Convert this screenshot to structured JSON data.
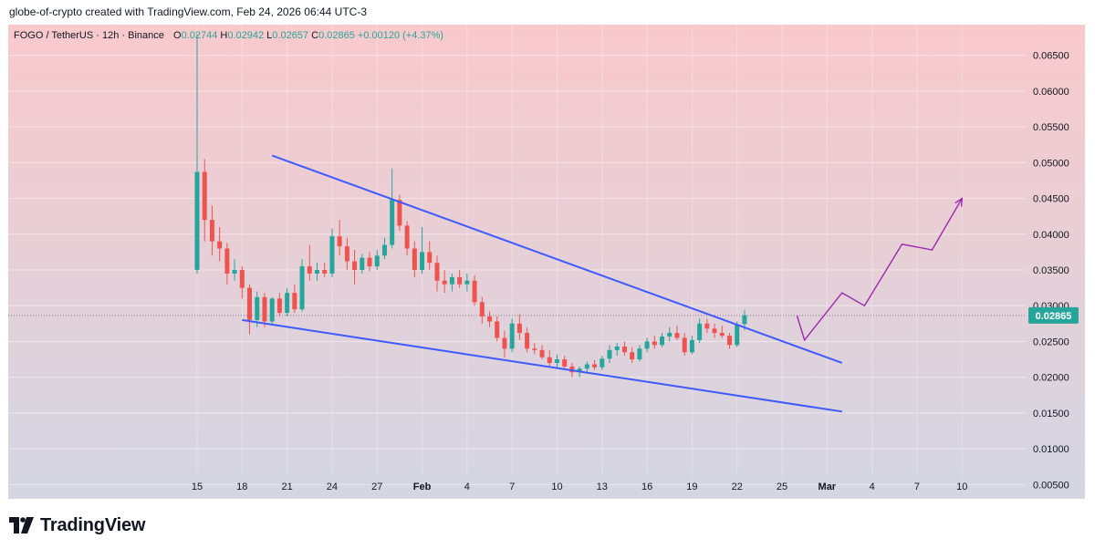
{
  "header": {
    "caption": "globe-of-crypto created with TradingView.com, Feb 24, 2026 06:44 UTC-3"
  },
  "legend": {
    "symbol": "FOGO / TetherUS · 12h · Binance",
    "o_label": "O",
    "o_value": "0.02744",
    "h_label": "H",
    "h_value": "0.02942",
    "l_label": "L",
    "l_value": "0.02657",
    "c_label": "C",
    "c_value": "0.02865",
    "change": "+0.00120 (+4.37%)"
  },
  "price_tag": "0.02865",
  "brand": {
    "name": "TradingView"
  },
  "colors": {
    "up": "#26a69a",
    "down": "#ef5350",
    "trendline": "#3d5afe",
    "projection": "#9c27b0",
    "bg_top": "#f9c9cc",
    "bg_bottom": "#d3d6e2",
    "tag": "#26a69a"
  },
  "chart_data": {
    "type": "candlestick",
    "interval": "12h",
    "x_axis": {
      "type": "date",
      "start": "2026-01-15",
      "end": "2026-03-11",
      "ticks": [
        "15",
        "18",
        "21",
        "24",
        "27",
        "Feb",
        "4",
        "7",
        "10",
        "13",
        "16",
        "19",
        "22",
        "25",
        "Mar",
        "4",
        "7",
        "10"
      ]
    },
    "y_axis": {
      "range": [
        0.003,
        0.0693
      ],
      "ticks": [
        "0.06500",
        "0.06000",
        "0.05500",
        "0.05000",
        "0.04500",
        "0.04000",
        "0.03500",
        "0.03000",
        "0.02500",
        "0.02000",
        "0.01500",
        "0.01000",
        "0.00500"
      ]
    },
    "last_price": 0.02865,
    "candles": [
      [
        0.035,
        0.068,
        0.0345,
        0.0487
      ],
      [
        0.0487,
        0.0505,
        0.039,
        0.042
      ],
      [
        0.042,
        0.044,
        0.037,
        0.039
      ],
      [
        0.039,
        0.041,
        0.0362,
        0.038
      ],
      [
        0.038,
        0.0388,
        0.033,
        0.0345
      ],
      [
        0.0345,
        0.0365,
        0.0335,
        0.035
      ],
      [
        0.035,
        0.0355,
        0.031,
        0.0325
      ],
      [
        0.0325,
        0.033,
        0.026,
        0.028
      ],
      [
        0.028,
        0.032,
        0.027,
        0.0312
      ],
      [
        0.0312,
        0.0318,
        0.027,
        0.0278
      ],
      [
        0.0278,
        0.0312,
        0.0275,
        0.031
      ],
      [
        0.031,
        0.0318,
        0.0285,
        0.029
      ],
      [
        0.029,
        0.0325,
        0.0285,
        0.0318
      ],
      [
        0.0318,
        0.033,
        0.029,
        0.0295
      ],
      [
        0.0295,
        0.0365,
        0.0292,
        0.0355
      ],
      [
        0.0355,
        0.0385,
        0.0335,
        0.0345
      ],
      [
        0.0345,
        0.036,
        0.0335,
        0.035
      ],
      [
        0.035,
        0.036,
        0.034,
        0.0345
      ],
      [
        0.0345,
        0.0408,
        0.034,
        0.0397
      ],
      [
        0.0397,
        0.042,
        0.037,
        0.0383
      ],
      [
        0.0383,
        0.0395,
        0.035,
        0.0362
      ],
      [
        0.0362,
        0.0378,
        0.033,
        0.035
      ],
      [
        0.035,
        0.0372,
        0.0345,
        0.0367
      ],
      [
        0.0367,
        0.0375,
        0.0348,
        0.0355
      ],
      [
        0.0355,
        0.0378,
        0.035,
        0.037
      ],
      [
        0.037,
        0.0395,
        0.0365,
        0.0385
      ],
      [
        0.0385,
        0.0492,
        0.038,
        0.0448
      ],
      [
        0.0448,
        0.0455,
        0.0405,
        0.0412
      ],
      [
        0.0412,
        0.0418,
        0.037,
        0.038
      ],
      [
        0.038,
        0.039,
        0.034,
        0.035
      ],
      [
        0.035,
        0.041,
        0.0345,
        0.0375
      ],
      [
        0.0375,
        0.039,
        0.035,
        0.036
      ],
      [
        0.036,
        0.037,
        0.032,
        0.0335
      ],
      [
        0.0335,
        0.035,
        0.0318,
        0.033
      ],
      [
        0.033,
        0.0345,
        0.032,
        0.034
      ],
      [
        0.034,
        0.035,
        0.0325,
        0.033
      ],
      [
        0.033,
        0.0345,
        0.032,
        0.0335
      ],
      [
        0.0335,
        0.0342,
        0.03,
        0.0305
      ],
      [
        0.0305,
        0.0312,
        0.0275,
        0.0285
      ],
      [
        0.0285,
        0.0292,
        0.027,
        0.0278
      ],
      [
        0.0278,
        0.0285,
        0.025,
        0.0255
      ],
      [
        0.0255,
        0.0265,
        0.0228,
        0.024
      ],
      [
        0.024,
        0.0282,
        0.0235,
        0.0275
      ],
      [
        0.0275,
        0.0288,
        0.0252,
        0.0262
      ],
      [
        0.0262,
        0.027,
        0.0235,
        0.024
      ],
      [
        0.024,
        0.0248,
        0.0232,
        0.0238
      ],
      [
        0.0238,
        0.0245,
        0.0225,
        0.0228
      ],
      [
        0.0228,
        0.0238,
        0.0215,
        0.022
      ],
      [
        0.022,
        0.0232,
        0.0212,
        0.0225
      ],
      [
        0.0225,
        0.023,
        0.021,
        0.0215
      ],
      [
        0.0215,
        0.022,
        0.02,
        0.0207
      ],
      [
        0.0207,
        0.0215,
        0.02,
        0.0212
      ],
      [
        0.0212,
        0.0222,
        0.0205,
        0.0218
      ],
      [
        0.0218,
        0.0224,
        0.021,
        0.0214
      ],
      [
        0.0214,
        0.023,
        0.021,
        0.0226
      ],
      [
        0.0226,
        0.0245,
        0.022,
        0.0238
      ],
      [
        0.0238,
        0.0248,
        0.023,
        0.0243
      ],
      [
        0.0243,
        0.025,
        0.023,
        0.0235
      ],
      [
        0.0235,
        0.0242,
        0.022,
        0.0225
      ],
      [
        0.0225,
        0.0245,
        0.0222,
        0.024
      ],
      [
        0.024,
        0.0255,
        0.0235,
        0.025
      ],
      [
        0.025,
        0.0258,
        0.024,
        0.0245
      ],
      [
        0.0245,
        0.0262,
        0.0242,
        0.0257
      ],
      [
        0.0257,
        0.027,
        0.025,
        0.0262
      ],
      [
        0.0262,
        0.0272,
        0.0252,
        0.0255
      ],
      [
        0.0255,
        0.0262,
        0.023,
        0.0235
      ],
      [
        0.0235,
        0.0258,
        0.0232,
        0.0252
      ],
      [
        0.0252,
        0.0282,
        0.0248,
        0.0275
      ],
      [
        0.0275,
        0.0282,
        0.0262,
        0.0268
      ],
      [
        0.0268,
        0.0275,
        0.0255,
        0.0262
      ],
      [
        0.0262,
        0.0272,
        0.0255,
        0.0258
      ],
      [
        0.0258,
        0.0262,
        0.024,
        0.0245
      ],
      [
        0.0245,
        0.0278,
        0.0242,
        0.0274
      ],
      [
        0.02744,
        0.02942,
        0.02657,
        0.02865
      ]
    ],
    "trendlines": [
      {
        "start": [
          "2026-01-20",
          0.051
        ],
        "end": [
          "2026-02-27",
          0.022
        ]
      },
      {
        "start": [
          "2026-01-18",
          0.028
        ],
        "end": [
          "2026-02-27",
          0.0152
        ]
      }
    ],
    "projection": [
      [
        "2026-02-24",
        0.0286
      ],
      [
        "2026-02-24 12:00",
        0.0252
      ],
      [
        "2026-02-27",
        0.0318
      ],
      [
        "2026-02-28 12:00",
        0.03
      ],
      [
        "2026-03-03",
        0.0386
      ],
      [
        "2026-03-05",
        0.0378
      ],
      [
        "2026-03-07",
        0.045
      ]
    ]
  }
}
